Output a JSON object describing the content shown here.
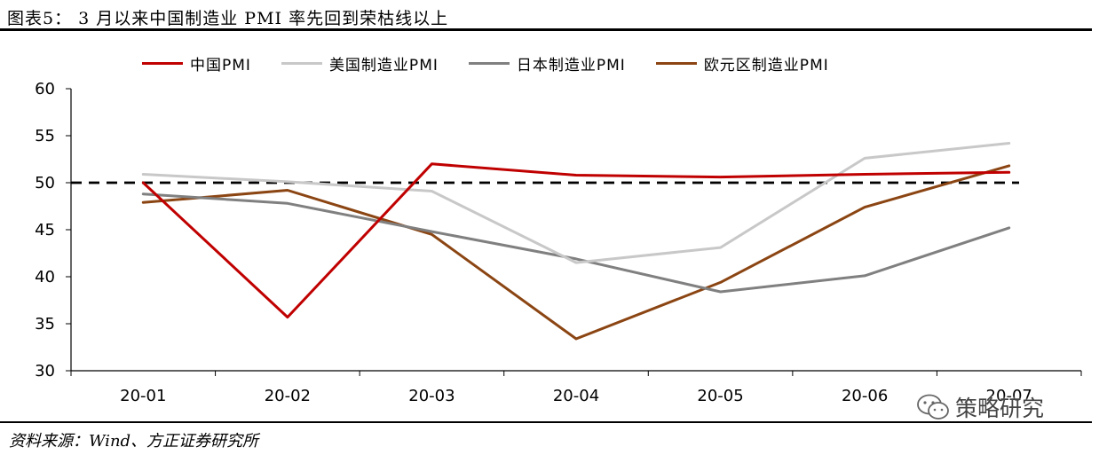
{
  "figure": {
    "title": "图表5：  3 月以来中国制造业 PMI 率先回到荣枯线以上",
    "source": "资料来源：Wind、方正证券研究所",
    "watermark": "策略研究"
  },
  "chart_data": {
    "type": "line",
    "categories": [
      "20-01",
      "20-02",
      "20-03",
      "20-04",
      "20-05",
      "20-06",
      "20-07"
    ],
    "ylim": [
      30,
      60
    ],
    "yticks": [
      30,
      35,
      40,
      45,
      50,
      55,
      60
    ],
    "grid": false,
    "legend_position": "top",
    "reference_line": {
      "y": 50,
      "style": "dashed",
      "color": "#000000"
    },
    "series": [
      {
        "name": "中国PMI",
        "color": "#c00000",
        "values": [
          50.0,
          35.7,
          52.0,
          50.8,
          50.6,
          50.9,
          51.1
        ]
      },
      {
        "name": "美国制造业PMI",
        "color": "#c8c8c8",
        "values": [
          50.9,
          50.1,
          49.1,
          41.5,
          43.1,
          52.6,
          54.2
        ]
      },
      {
        "name": "日本制造业PMI",
        "color": "#808080",
        "values": [
          48.8,
          47.8,
          44.8,
          41.9,
          38.4,
          40.1,
          45.2
        ]
      },
      {
        "name": "欧元区制造业PMI",
        "color": "#8b4513",
        "values": [
          47.9,
          49.2,
          44.5,
          33.4,
          39.4,
          47.4,
          51.8
        ]
      }
    ]
  }
}
